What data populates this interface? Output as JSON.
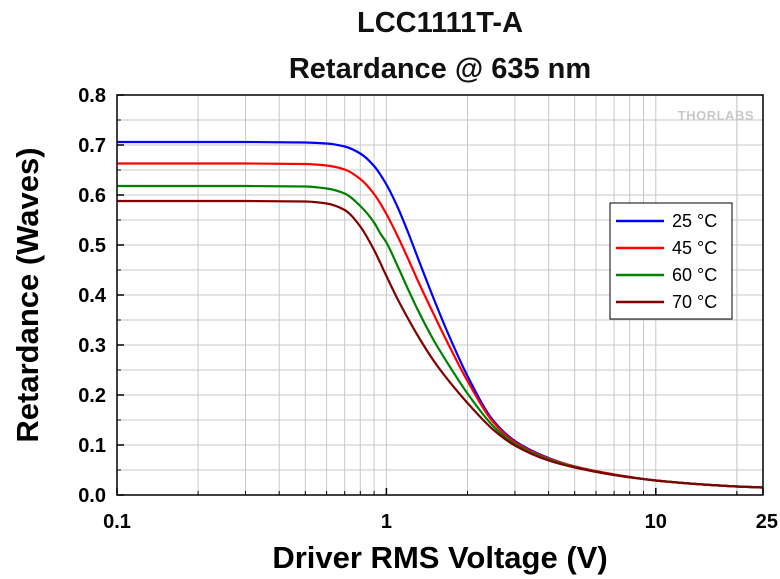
{
  "chart_data": {
    "type": "line",
    "title": "LCC1111T-A",
    "subtitle": "Retardance @ 635 nm",
    "xlabel": "Driver RMS Voltage (V)",
    "ylabel": "Retardance (Waves)",
    "xscale": "log",
    "xlim": [
      0.1,
      25
    ],
    "ylim": [
      0,
      0.8
    ],
    "grid": true,
    "legend_position": "right",
    "watermark": "THORLABS",
    "xticks": [
      {
        "value": 0.1,
        "label": "0.1"
      },
      {
        "value": 1,
        "label": "1"
      },
      {
        "value": 10,
        "label": "10"
      },
      {
        "value": 25,
        "label": "25"
      }
    ],
    "yticks": [
      {
        "value": 0.0,
        "label": "0.0"
      },
      {
        "value": 0.1,
        "label": "0.1"
      },
      {
        "value": 0.2,
        "label": "0.2"
      },
      {
        "value": 0.3,
        "label": "0.3"
      },
      {
        "value": 0.4,
        "label": "0.4"
      },
      {
        "value": 0.5,
        "label": "0.5"
      },
      {
        "value": 0.6,
        "label": "0.6"
      },
      {
        "value": 0.7,
        "label": "0.7"
      },
      {
        "value": 0.8,
        "label": "0.8"
      }
    ],
    "series": [
      {
        "name": "25 °C",
        "color": "#0000ff",
        "x": [
          0.1,
          0.3,
          0.5,
          0.6,
          0.7,
          0.8,
          0.9,
          1.0,
          1.1,
          1.2,
          1.3,
          1.5,
          1.7,
          2.0,
          2.5,
          3.0,
          4.0,
          5.0,
          7.0,
          10,
          15,
          20,
          25
        ],
        "y": [
          0.706,
          0.706,
          0.705,
          0.703,
          0.697,
          0.683,
          0.658,
          0.621,
          0.576,
          0.527,
          0.478,
          0.392,
          0.321,
          0.238,
          0.148,
          0.108,
          0.074,
          0.057,
          0.041,
          0.029,
          0.021,
          0.017,
          0.015
        ]
      },
      {
        "name": "45 °C",
        "color": "#ff0000",
        "x": [
          0.1,
          0.3,
          0.5,
          0.6,
          0.7,
          0.8,
          0.9,
          1.0,
          1.1,
          1.2,
          1.3,
          1.5,
          1.7,
          2.0,
          2.5,
          3.0,
          4.0,
          5.0,
          7.0,
          10,
          15,
          20,
          25
        ],
        "y": [
          0.663,
          0.663,
          0.662,
          0.659,
          0.651,
          0.632,
          0.602,
          0.562,
          0.518,
          0.474,
          0.432,
          0.361,
          0.301,
          0.228,
          0.145,
          0.106,
          0.073,
          0.057,
          0.041,
          0.029,
          0.021,
          0.017,
          0.015
        ]
      },
      {
        "name": "60 °C",
        "color": "#008000",
        "x": [
          0.1,
          0.3,
          0.5,
          0.6,
          0.7,
          0.8,
          0.9,
          0.95,
          1.0,
          1.1,
          1.2,
          1.3,
          1.5,
          1.7,
          2.0,
          2.5,
          3.0,
          4.0,
          5.0,
          7.0,
          10,
          15,
          20,
          25
        ],
        "y": [
          0.618,
          0.618,
          0.617,
          0.613,
          0.603,
          0.578,
          0.545,
          0.523,
          0.505,
          0.458,
          0.413,
          0.373,
          0.309,
          0.261,
          0.203,
          0.137,
          0.102,
          0.071,
          0.056,
          0.04,
          0.029,
          0.021,
          0.017,
          0.015
        ]
      },
      {
        "name": "70 °C",
        "color": "#800000",
        "x": [
          0.1,
          0.3,
          0.5,
          0.6,
          0.7,
          0.8,
          0.9,
          1.0,
          1.1,
          1.2,
          1.3,
          1.5,
          1.7,
          2.0,
          2.5,
          3.0,
          4.0,
          5.0,
          7.0,
          10,
          15,
          20,
          25
        ],
        "y": [
          0.588,
          0.588,
          0.587,
          0.583,
          0.57,
          0.537,
          0.49,
          0.438,
          0.392,
          0.354,
          0.321,
          0.268,
          0.229,
          0.184,
          0.13,
          0.099,
          0.069,
          0.055,
          0.04,
          0.029,
          0.021,
          0.017,
          0.015
        ]
      }
    ]
  }
}
